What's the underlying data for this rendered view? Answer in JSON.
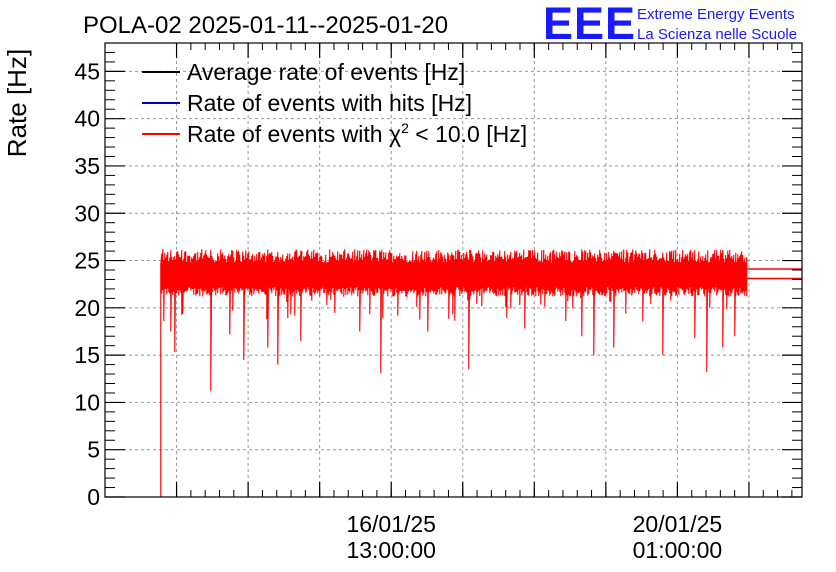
{
  "chart_data": {
    "type": "line",
    "title": "POLA-02 2025-01-11--2025-01-20",
    "ylabel": "Rate [Hz]",
    "xlabel": "",
    "ylim": [
      0,
      48
    ],
    "yticks": [
      0,
      5,
      10,
      15,
      20,
      25,
      30,
      35,
      40,
      45
    ],
    "xlim_days": [
      0,
      8.625
    ],
    "xticks": [
      {
        "day": 3.5417,
        "line1": "16/01/25",
        "line2": "13:00:00"
      },
      {
        "day": 7.0833,
        "line1": "20/01/25",
        "line2": "01:00:00"
      }
    ],
    "grid": true,
    "legend_position": "top-left",
    "series": [
      {
        "name": "Average rate of events [Hz]",
        "color": "#000000",
        "values": [],
        "style": "legend-only"
      },
      {
        "name": "Rate of events with hits [Hz]",
        "color": "#0000cc",
        "values": [],
        "style": "legend-only"
      },
      {
        "name": "Rate of events with χ² < 10.0 [Hz]",
        "color": "#ff0000",
        "style": "noisy-band",
        "x_days": [
          0.69,
          7.95
        ],
        "band_low": 22.0,
        "band_high": 25.0,
        "mean": 23.6,
        "start_drop_to": 0,
        "dips": [
          {
            "day": 0.73,
            "value": 18.6
          },
          {
            "day": 0.82,
            "value": 17.5
          },
          {
            "day": 0.87,
            "value": 15.3
          },
          {
            "day": 1.31,
            "value": 11.2
          },
          {
            "day": 1.55,
            "value": 17.2
          },
          {
            "day": 1.72,
            "value": 14.5
          },
          {
            "day": 2.02,
            "value": 15.8
          },
          {
            "day": 2.14,
            "value": 14.0
          },
          {
            "day": 2.43,
            "value": 16.5
          },
          {
            "day": 3.15,
            "value": 17.5
          },
          {
            "day": 3.42,
            "value": 13.1
          },
          {
            "day": 4.0,
            "value": 17.5
          },
          {
            "day": 4.5,
            "value": 13.5
          },
          {
            "day": 5.2,
            "value": 17.8
          },
          {
            "day": 5.9,
            "value": 17.0
          },
          {
            "day": 6.05,
            "value": 15.0
          },
          {
            "day": 6.3,
            "value": 15.8
          },
          {
            "day": 6.9,
            "value": 15.0
          },
          {
            "day": 7.3,
            "value": 16.8
          },
          {
            "day": 7.45,
            "value": 13.2
          },
          {
            "day": 7.65,
            "value": 15.8
          },
          {
            "day": 7.8,
            "value": 17.0
          }
        ]
      }
    ],
    "tail_lines": [
      {
        "value": 24.1,
        "color": "#ff0000"
      },
      {
        "value": 23.1,
        "color": "#ff0000"
      }
    ]
  },
  "logo": {
    "mark": "EEE",
    "line1": "Extreme Energy Events",
    "line2": "La Scienza nelle Scuole",
    "color": "#1a1aff"
  }
}
